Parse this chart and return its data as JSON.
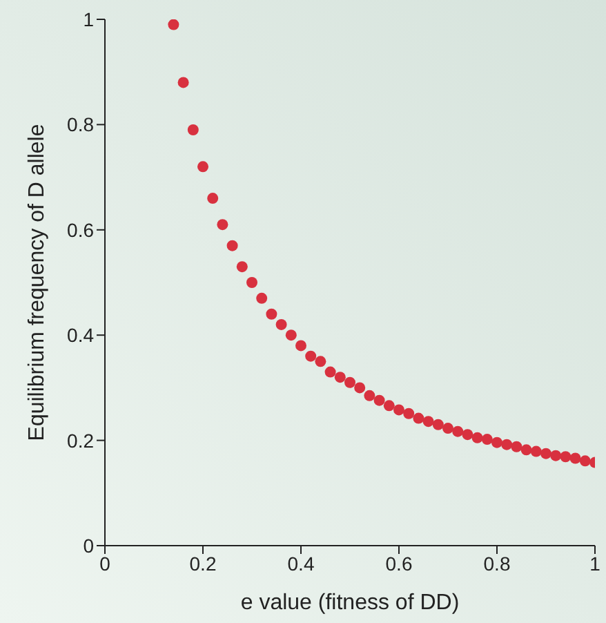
{
  "chart_data": {
    "type": "scatter",
    "xlabel": "e value (fitness of DD)",
    "ylabel": "Equilibrium frequency of D allele",
    "x": [
      0.14,
      0.16,
      0.18,
      0.2,
      0.22,
      0.24,
      0.26,
      0.28,
      0.3,
      0.32,
      0.34,
      0.36,
      0.38,
      0.4,
      0.42,
      0.44,
      0.46,
      0.48,
      0.5,
      0.52,
      0.54,
      0.56,
      0.58,
      0.6,
      0.62,
      0.64,
      0.66,
      0.68,
      0.7,
      0.72,
      0.74,
      0.76,
      0.78,
      0.8,
      0.82,
      0.84,
      0.86,
      0.88,
      0.9,
      0.92,
      0.94,
      0.96,
      0.98,
      1
    ],
    "series": [
      {
        "color": "#d8313f",
        "values": [
          0.99,
          0.88,
          0.79,
          0.72,
          0.66,
          0.61,
          0.57,
          0.53,
          0.5,
          0.47,
          0.44,
          0.42,
          0.4,
          0.38,
          0.36,
          0.35,
          0.33,
          0.32,
          0.31,
          0.3,
          0.285,
          0.276,
          0.266,
          0.258,
          0.251,
          0.242,
          0.236,
          0.23,
          0.223,
          0.217,
          0.211,
          0.205,
          0.202,
          0.196,
          0.192,
          0.188,
          0.182,
          0.179,
          0.175,
          0.171,
          0.169,
          0.166,
          0.161,
          0.158
        ]
      }
    ],
    "xlim": [
      0,
      1
    ],
    "xticks": [
      0,
      0.2,
      0.4,
      0.6,
      0.8,
      1
    ],
    "ylim": [
      0,
      1
    ],
    "yticks": [
      0,
      0.2,
      0.4,
      0.6,
      0.8,
      1
    ],
    "marker": "circle",
    "grid": false,
    "legend": false
  }
}
